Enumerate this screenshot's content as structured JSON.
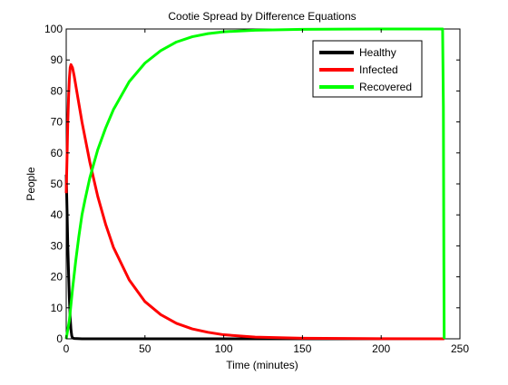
{
  "chart_data": {
    "type": "line",
    "title": "Cootie Spread by Difference Equations",
    "xlabel": "Time (minutes)",
    "ylabel": "People",
    "xlim": [
      0,
      250
    ],
    "ylim": [
      0,
      100
    ],
    "xticks": [
      0,
      50,
      100,
      150,
      200,
      250
    ],
    "yticks": [
      0,
      10,
      20,
      30,
      40,
      50,
      60,
      70,
      80,
      90,
      100
    ],
    "grid": false,
    "legend_position": "top-right",
    "series": [
      {
        "name": "Healthy",
        "color": "#000000",
        "points": [
          [
            0,
            53
          ],
          [
            0.5,
            42
          ],
          [
            1,
            30
          ],
          [
            1.5,
            21
          ],
          [
            2,
            13
          ],
          [
            2.5,
            7
          ],
          [
            3,
            3
          ],
          [
            3.5,
            1
          ],
          [
            4,
            0.3
          ],
          [
            5,
            0.1
          ],
          [
            10,
            0
          ],
          [
            50,
            0
          ],
          [
            100,
            0
          ],
          [
            150,
            0
          ],
          [
            200,
            0
          ],
          [
            240,
            0
          ]
        ]
      },
      {
        "name": "Infected",
        "color": "#ff0000",
        "points": [
          [
            0,
            47
          ],
          [
            0.5,
            58
          ],
          [
            1,
            70
          ],
          [
            1.5,
            78
          ],
          [
            2,
            84
          ],
          [
            2.5,
            87.5
          ],
          [
            3,
            88.5
          ],
          [
            4,
            87.5
          ],
          [
            5,
            85
          ],
          [
            7,
            79
          ],
          [
            10,
            70
          ],
          [
            15,
            57
          ],
          [
            20,
            46
          ],
          [
            25,
            37
          ],
          [
            30,
            29.5
          ],
          [
            40,
            19
          ],
          [
            50,
            12
          ],
          [
            60,
            7.8
          ],
          [
            70,
            5
          ],
          [
            80,
            3.2
          ],
          [
            90,
            2.1
          ],
          [
            100,
            1.3
          ],
          [
            120,
            0.55
          ],
          [
            150,
            0.2
          ],
          [
            200,
            0.03
          ],
          [
            240,
            0
          ]
        ]
      },
      {
        "name": "Recovered",
        "color": "#00ff00",
        "points": [
          [
            0,
            0
          ],
          [
            2,
            6
          ],
          [
            4,
            16
          ],
          [
            6,
            25
          ],
          [
            8,
            33
          ],
          [
            10,
            40
          ],
          [
            12,
            45
          ],
          [
            15,
            52
          ],
          [
            20,
            61
          ],
          [
            25,
            68
          ],
          [
            30,
            74
          ],
          [
            40,
            83
          ],
          [
            50,
            89
          ],
          [
            60,
            93
          ],
          [
            70,
            95.8
          ],
          [
            80,
            97.5
          ],
          [
            90,
            98.5
          ],
          [
            100,
            99.1
          ],
          [
            120,
            99.6
          ],
          [
            150,
            99.9
          ],
          [
            200,
            100
          ],
          [
            239,
            100
          ],
          [
            239.5,
            75
          ],
          [
            239.8,
            25
          ],
          [
            240,
            0
          ]
        ]
      }
    ]
  }
}
